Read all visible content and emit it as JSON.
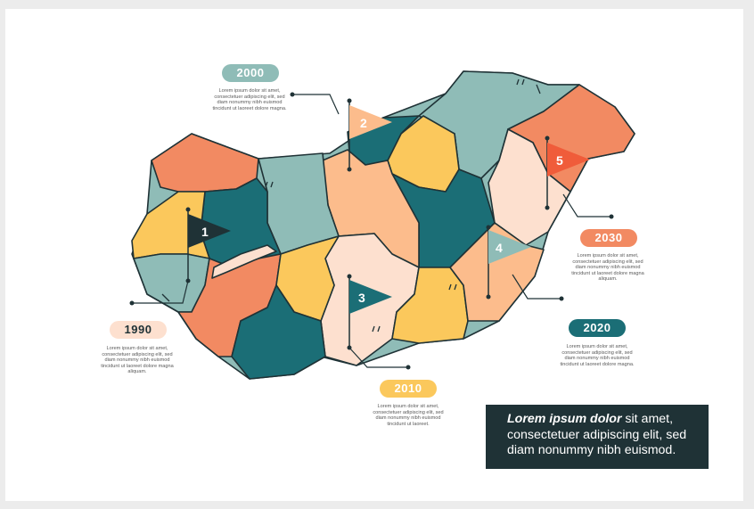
{
  "colors": {
    "teal_dark": "#1b6e76",
    "teal_light": "#8fbcb7",
    "orange": "#f28a62",
    "peach": "#fcbc8c",
    "pale": "#fde0cf",
    "yellow": "#fbc85c",
    "red": "#f05c3a",
    "navy": "#1f3236"
  },
  "markers": [
    {
      "number": "1",
      "year": "1990",
      "description": "Lorem ipsum dolor sit amet, consectetuer adipiscing elit, sed diam nonummy nibh euismod tincidunt ut laoreet dolore magna aliquam."
    },
    {
      "number": "2",
      "year": "2000",
      "description": "Lorem ipsum dolor sit amet, consectetuer adipiscing elit, sed diam nonummy nibh euismod tincidunt ut laoreet dolore magna."
    },
    {
      "number": "3",
      "year": "2010",
      "description": "Lorem ipsum dolor sit amet, consectetuer adipiscing elit, sed diam nonummy nibh euismod tincidunt ut laoreet."
    },
    {
      "number": "4",
      "year": "2020",
      "description": "Lorem ipsum dolor sit amet, consectetuer adipiscing elit, sed diam nonummy nibh euismod tincidunt ut laoreet dolore magna."
    },
    {
      "number": "5",
      "year": "2030",
      "description": "Lorem ipsum dolor sit amet, consectetuer adipiscing elit, sed diam nonummy nibh euismod tincidunt ut laoreet dolore magna aliquam."
    }
  ],
  "callout": {
    "lead": "Lorem ipsum dolor",
    "text": " sit amet, consectetuer adipiscing elit, sed diam nonummy nibh euismod."
  }
}
